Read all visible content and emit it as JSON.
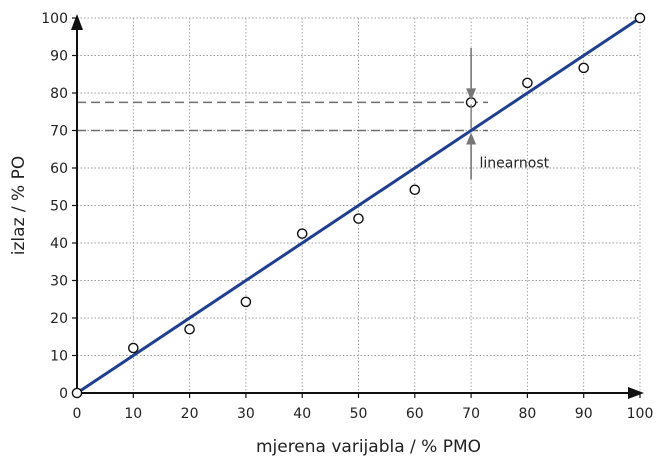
{
  "chart_data": {
    "type": "scatter",
    "title": "",
    "xlabel": "mjerena varijabla / % PMO",
    "ylabel": "izlaz / % PO",
    "xlim": [
      0,
      100
    ],
    "ylim": [
      0,
      100
    ],
    "x_ticks": [
      0,
      10,
      20,
      30,
      40,
      50,
      60,
      70,
      80,
      90,
      100
    ],
    "y_ticks": [
      0,
      10,
      20,
      30,
      40,
      50,
      60,
      70,
      80,
      90,
      100
    ],
    "grid": true,
    "grid_style": "dotted",
    "series": [
      {
        "kind": "points",
        "marker": "open-circle",
        "color": "#111111",
        "x": [
          0,
          10,
          20,
          30,
          40,
          50,
          60,
          70,
          80,
          90,
          100
        ],
        "y": [
          0,
          12,
          17,
          24.3,
          42.5,
          46.5,
          54.2,
          77.5,
          82.7,
          86.7,
          100
        ]
      },
      {
        "kind": "line",
        "color": "#1f3f8f",
        "x": [
          0,
          100
        ],
        "y": [
          0,
          100
        ]
      }
    ],
    "reference_lines": [
      {
        "y": 77.5,
        "x_from": 0,
        "x_to": 73,
        "style": "dashed"
      },
      {
        "y": 70,
        "x_from": 0,
        "x_to": 73,
        "style": "dashed"
      }
    ],
    "annotations": [
      {
        "text": "linearnost",
        "x": 71.5,
        "y": 61.5
      }
    ],
    "arrow_color": "#777777",
    "axis_color": "#111111"
  }
}
